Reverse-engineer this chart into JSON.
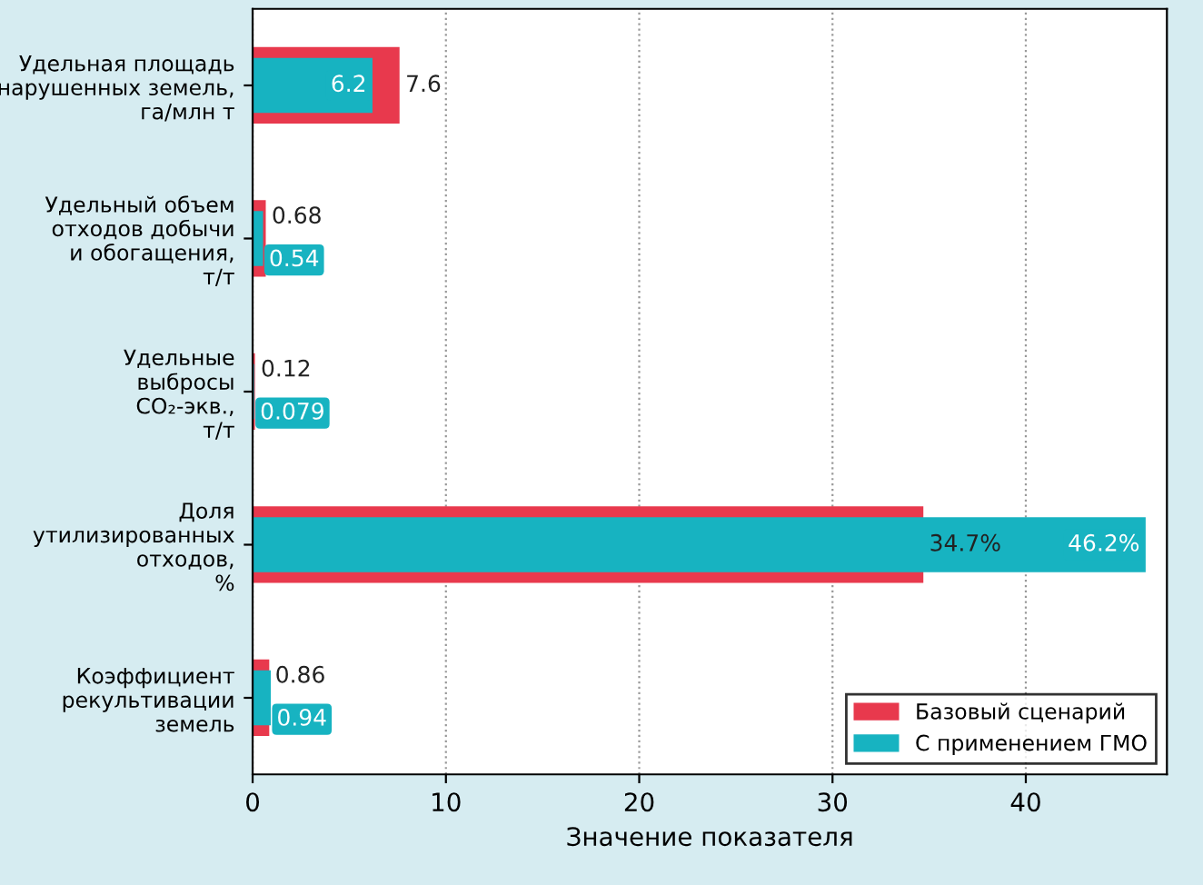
{
  "chart_data": {
    "type": "bar",
    "orientation": "horizontal",
    "categories": [
      "Удельная площадь\nнарушенных земель,\nга/млн т",
      "Удельный объем\nотходов добычи\nи обогащения,\nт/т",
      "Удельные\nвыбросы\nCO₂-экв.,\nт/т",
      "Доля\nутилизированных\nотходов,\n%",
      "Коэффициент\nрекультивации\nземель"
    ],
    "series": [
      {
        "name": "Базовый сценарий",
        "color": "#e8394d",
        "values": [
          7.6,
          0.68,
          0.12,
          34.7,
          0.86
        ],
        "value_labels": [
          "7.6",
          "0.68",
          "0.12",
          "34.7%",
          "0.86"
        ]
      },
      {
        "name": "С применением ГМО",
        "color": "#17b3c1",
        "values": [
          6.2,
          0.54,
          0.079,
          46.2,
          0.94
        ],
        "value_labels": [
          "6.2",
          "0.54",
          "0.079",
          "46.2%",
          "0.94"
        ]
      }
    ],
    "xlabel": "Значение показателя",
    "xlim": [
      0,
      47.3
    ],
    "xticks": [
      0,
      10,
      20,
      30,
      40
    ],
    "grid": "x",
    "legend": "bottom right"
  }
}
